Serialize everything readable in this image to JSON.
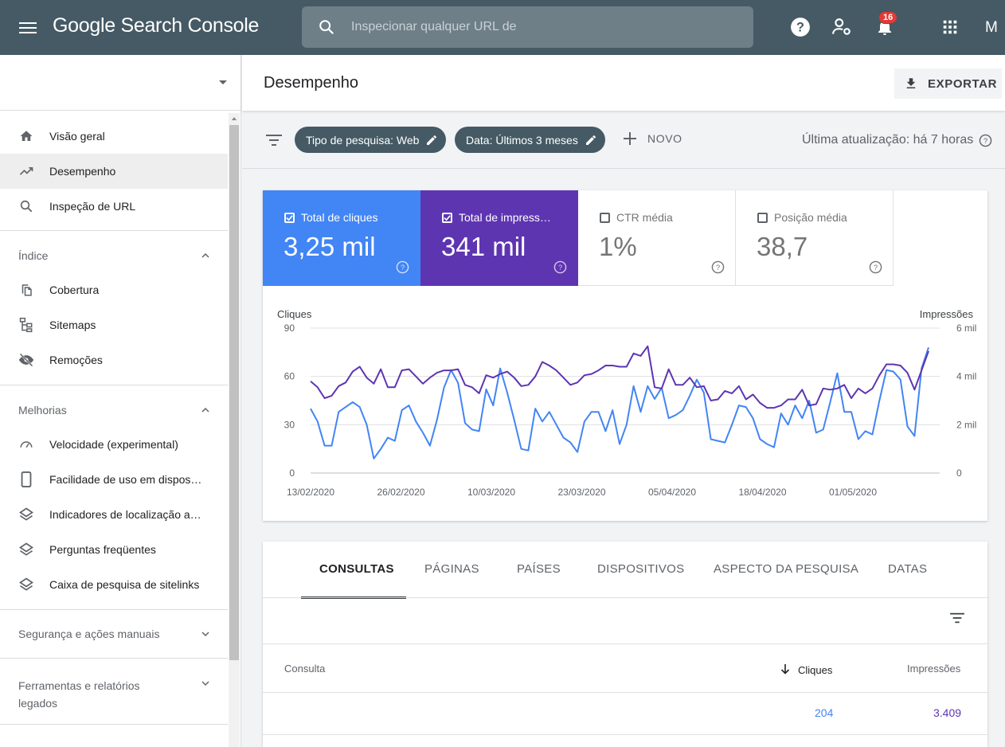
{
  "topbar": {
    "logo": "Google Search Console",
    "search_placeholder": "Inspecionar qualquer URL de",
    "notification_count": "16",
    "avatar_letter": "M"
  },
  "sidebar": {
    "items": [
      {
        "label": "Visão geral",
        "icon": "home-icon"
      },
      {
        "label": "Desempenho",
        "icon": "trending-up-icon",
        "active": true
      },
      {
        "label": "Inspeção de URL",
        "icon": "search-icon"
      }
    ],
    "sections": [
      {
        "title": "Índice",
        "expanded": true,
        "items": [
          {
            "label": "Cobertura",
            "icon": "copy-icon"
          },
          {
            "label": "Sitemaps",
            "icon": "sitemap-icon"
          },
          {
            "label": "Remoções",
            "icon": "eye-off-icon"
          }
        ]
      },
      {
        "title": "Melhorias",
        "expanded": true,
        "items": [
          {
            "label": "Velocidade (experimental)",
            "icon": "speed-icon"
          },
          {
            "label": "Facilidade de uso em dispos…",
            "icon": "phone-icon"
          },
          {
            "label": "Indicadores de localização a…",
            "icon": "layers-icon"
          },
          {
            "label": "Perguntas freqüentes",
            "icon": "layers-icon"
          },
          {
            "label": "Caixa de pesquisa de sitelinks",
            "icon": "layers-icon"
          }
        ]
      },
      {
        "title": "Segurança e ações manuais",
        "expanded": false
      },
      {
        "title": "Ferramentas e relatórios legados",
        "title_line1": "Ferramentas e relatórios",
        "title_line2": "legados",
        "expanded": false
      }
    ]
  },
  "header": {
    "title": "Desempenho",
    "export_label": "EXPORTAR"
  },
  "filters": {
    "chips": [
      "Tipo de pesquisa: Web",
      "Data: Últimos 3 meses"
    ],
    "new_label": "NOVO",
    "last_update": "Última atualização: há 7 horas"
  },
  "metrics": [
    {
      "label": "Total de cliques",
      "value": "3,25 mil",
      "checked": true,
      "color": "#4285f4"
    },
    {
      "label": "Total de impress…",
      "value": "341 mil",
      "checked": true,
      "color": "#5e35b1"
    },
    {
      "label": "CTR média",
      "value": "1%",
      "checked": false
    },
    {
      "label": "Posição média",
      "value": "38,7",
      "checked": false
    }
  ],
  "chart_data": {
    "type": "line",
    "left_axis_label": "Cliques",
    "right_axis_label": "Impressões",
    "left_ticks": [
      "90",
      "60",
      "30",
      "0"
    ],
    "right_ticks": [
      "6 mil",
      "4 mil",
      "2 mil",
      "0"
    ],
    "ylim_left": [
      0,
      90
    ],
    "ylim_right": [
      0,
      6000
    ],
    "x_ticks": [
      "13/02/2020",
      "26/02/2020",
      "10/03/2020",
      "23/03/2020",
      "05/04/2020",
      "18/04/2020",
      "01/05/2020"
    ],
    "series": [
      {
        "axis": "left",
        "color": "#4285f4",
        "values": [
          40,
          32,
          17,
          17,
          38,
          41,
          44,
          41,
          30,
          9,
          15,
          22,
          20,
          39,
          42,
          32,
          25,
          17,
          33,
          53,
          64,
          56,
          31,
          27,
          26,
          52,
          42,
          65,
          50,
          33,
          15,
          14,
          40,
          32,
          38,
          30,
          22,
          19,
          13,
          32,
          38,
          38,
          26,
          39,
          18,
          30,
          54,
          38,
          54,
          46,
          53,
          34,
          36,
          39,
          48,
          58,
          50,
          21,
          20,
          19,
          30,
          42,
          41,
          34,
          21,
          18,
          16,
          37,
          30,
          42,
          34,
          45,
          25,
          27,
          44,
          62,
          38,
          38,
          21,
          26,
          24,
          45,
          64,
          63,
          58,
          29,
          23,
          65,
          78
        ]
      },
      {
        "axis": "right",
        "color": "#5e35b1",
        "values": [
          3800,
          3550,
          3100,
          3200,
          3600,
          3750,
          4200,
          4400,
          3950,
          3700,
          4300,
          3550,
          3550,
          4250,
          4300,
          4000,
          3700,
          3950,
          4150,
          4250,
          4250,
          4300,
          3650,
          3550,
          3300,
          4050,
          3950,
          4100,
          4200,
          3950,
          3600,
          3650,
          4000,
          4600,
          4450,
          4250,
          3950,
          3650,
          3750,
          4050,
          4100,
          4250,
          4450,
          4450,
          4400,
          4400,
          4950,
          4850,
          5250,
          3550,
          3500,
          4300,
          3650,
          3650,
          3950,
          3550,
          3600,
          3000,
          3050,
          3400,
          3300,
          3600,
          3050,
          3250,
          2900,
          2700,
          2700,
          2800,
          3050,
          3050,
          3450,
          2800,
          2850,
          3500,
          3450,
          3500,
          3650,
          3100,
          3500,
          3300,
          3500,
          4050,
          4500,
          4500,
          4450,
          4150,
          3450,
          4250,
          5050
        ],
        "values_display_note": ""
      }
    ]
  },
  "tabs": [
    "CONSULTAS",
    "PÁGINAS",
    "PAÍSES",
    "DISPOSITIVOS",
    "ASPECTO DA PESQUISA",
    "DATAS"
  ],
  "table": {
    "headers": {
      "query": "Consulta",
      "clicks": "Cliques",
      "impressions": "Impressões"
    },
    "rows": [
      {
        "query": "",
        "clicks": "204",
        "impressions": "3.409"
      }
    ]
  },
  "colors": {
    "clicks": "#4285f4",
    "impressions": "#5e35b1",
    "topbar": "#455a64"
  }
}
